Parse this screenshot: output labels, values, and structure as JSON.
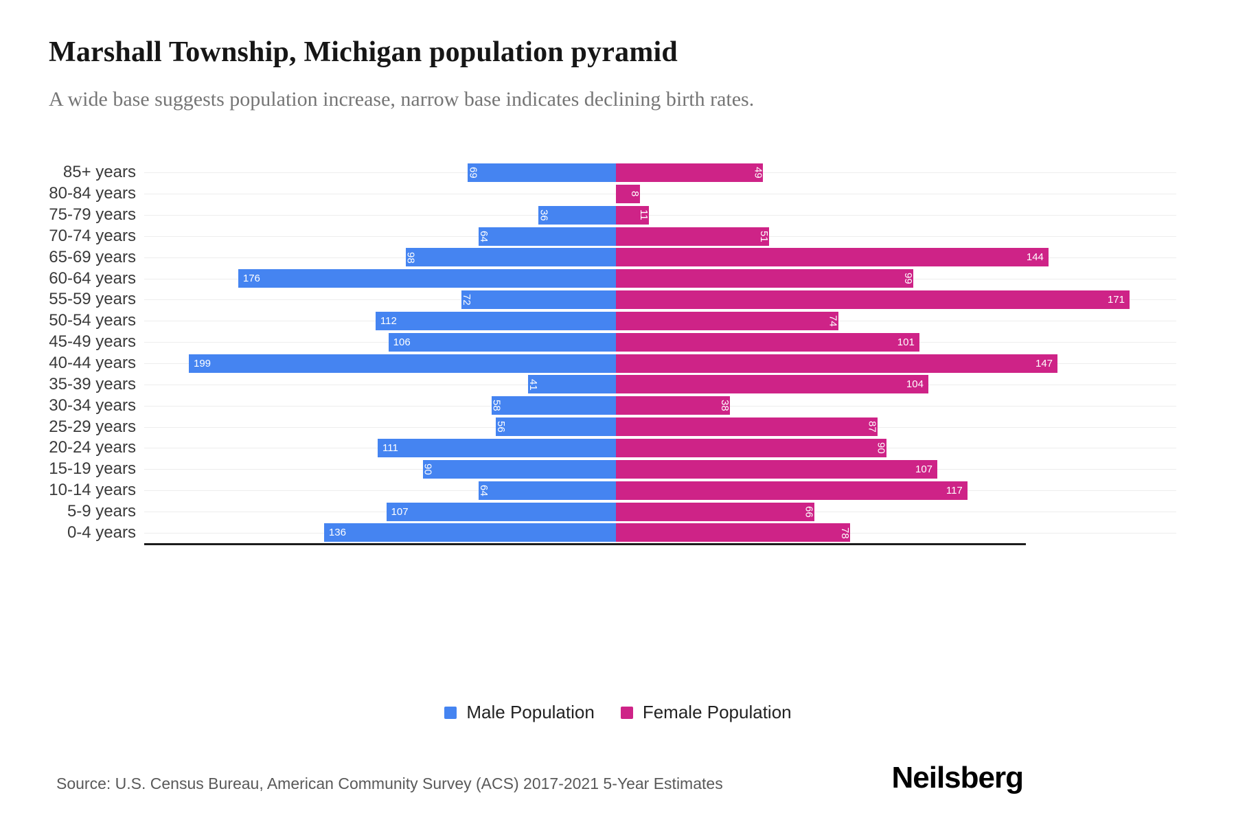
{
  "header": {
    "title": "Marshall Township, Michigan population pyramid",
    "subtitle": "A wide base suggests population increase, narrow base indicates declining birth rates."
  },
  "chart_data": {
    "type": "bar",
    "subtype": "population-pyramid",
    "orientation": "horizontal",
    "categories": [
      "85+ years",
      "80-84 years",
      "75-79 years",
      "70-74 years",
      "65-69 years",
      "60-64 years",
      "55-59 years",
      "50-54 years",
      "45-49 years",
      "40-44 years",
      "35-39 years",
      "30-34 years",
      "25-29 years",
      "20-24 years",
      "15-19 years",
      "10-14 years",
      "5-9 years",
      "0-4 years"
    ],
    "series": [
      {
        "name": "Male Population",
        "side": "left",
        "color": "#4584F1",
        "values": [
          69,
          0,
          36,
          64,
          98,
          176,
          72,
          112,
          106,
          199,
          41,
          58,
          56,
          111,
          90,
          64,
          107,
          136
        ]
      },
      {
        "name": "Female Population",
        "side": "right",
        "color": "#CE2387",
        "values": [
          49,
          8,
          11,
          51,
          144,
          99,
          171,
          74,
          101,
          147,
          104,
          38,
          87,
          90,
          107,
          117,
          66,
          78
        ]
      }
    ],
    "value_labels": "inside bar end, white; values under 100 rotated vertical",
    "legend_position": "bottom",
    "grid": "faint horizontal line per row"
  },
  "legend": [
    {
      "label": "Male Population",
      "color": "#4584F1"
    },
    {
      "label": "Female Population",
      "color": "#CE2387"
    }
  ],
  "footer": {
    "source": "Source: U.S. Census Bureau, American Community Survey (ACS) 2017-2021 5-Year Estimates",
    "logo": "Neilsberg"
  }
}
